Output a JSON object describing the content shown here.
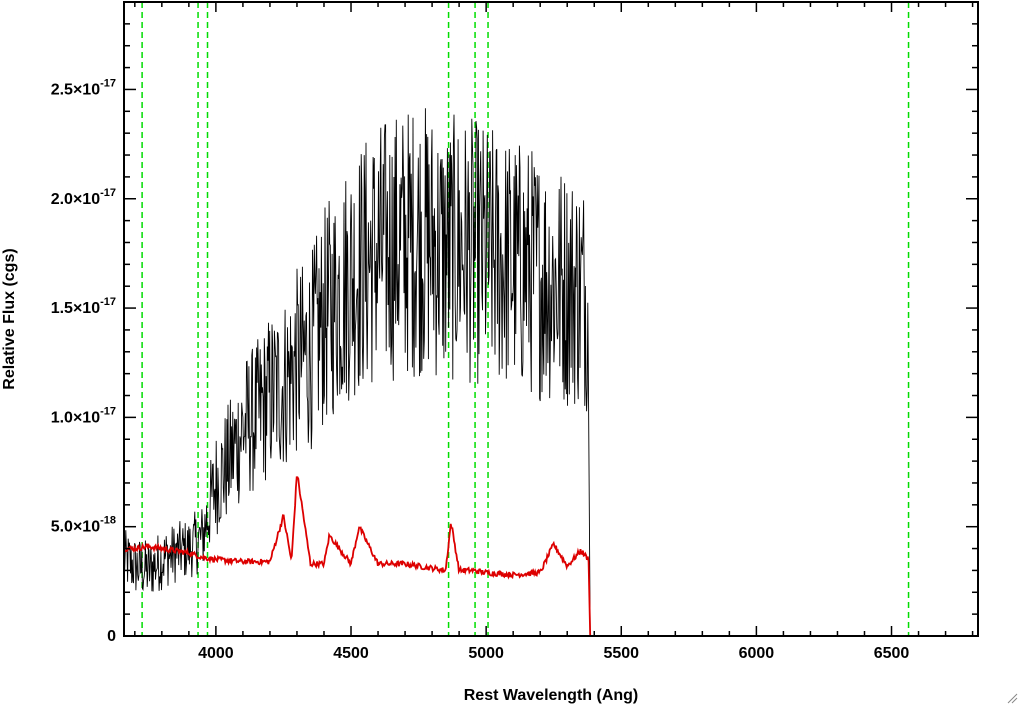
{
  "chart_data": {
    "type": "line",
    "title": "",
    "xlabel": "Rest Wavelength (Ang)",
    "ylabel": "Relative Flux (cgs)",
    "xlim": [
      3660,
      6820
    ],
    "ylim": [
      0,
      2.9e-17
    ],
    "x_ticks": [
      4000,
      4500,
      5000,
      5500,
      6000,
      6500
    ],
    "x_tick_labels": [
      "4000",
      "4500",
      "5000",
      "5500",
      "6000",
      "6500"
    ],
    "y_ticks": [
      0,
      5e-18,
      1e-17,
      1.5e-17,
      2e-17,
      2.5e-17
    ],
    "y_tick_labels": [
      {
        "mantissa": "0",
        "exponent": ""
      },
      {
        "mantissa": "5.0×10",
        "exponent": "-18"
      },
      {
        "mantissa": "1.0×10",
        "exponent": "-17"
      },
      {
        "mantissa": "1.5×10",
        "exponent": "-17"
      },
      {
        "mantissa": "2.0×10",
        "exponent": "-17"
      },
      {
        "mantissa": "2.5×10",
        "exponent": "-17"
      }
    ],
    "grid": false,
    "reference_lines_x": [
      3727,
      3934,
      3969,
      4861,
      4959,
      5007,
      6563
    ],
    "series": [
      {
        "color": "#000000",
        "x": [
          3660,
          3700,
          3750,
          3800,
          3850,
          3900,
          3950,
          4000,
          4050,
          4100,
          4150,
          4200,
          4250,
          4300,
          4350,
          4400,
          4450,
          4500,
          4550,
          4600,
          4650,
          4700,
          4750,
          4800,
          4850,
          4900,
          4950,
          5000,
          5050,
          5100,
          5150,
          5200,
          5250,
          5300,
          5350,
          5380,
          5385,
          6820
        ],
        "y": [
          3.5e-18,
          3.2e-18,
          3e-18,
          3.5e-18,
          3.8e-18,
          4e-18,
          4.5e-18,
          7e-18,
          8e-18,
          9.5e-18,
          1e-17,
          1.1e-17,
          1.15e-17,
          1.25e-17,
          1.3e-17,
          1.45e-17,
          1.55e-17,
          1.65e-17,
          1.7e-17,
          1.75e-17,
          1.78e-17,
          1.8e-17,
          1.82e-17,
          1.8e-17,
          1.75e-17,
          1.78e-17,
          1.76e-17,
          1.74e-17,
          1.72e-17,
          1.7e-17,
          1.68e-17,
          1.65e-17,
          1.62e-17,
          1.6e-17,
          1.58e-17,
          1.55e-17,
          0,
          0
        ],
        "noise": 0.35
      },
      {
        "color": "#dd0000",
        "x": [
          3660,
          3700,
          3750,
          3800,
          3850,
          3900,
          3950,
          4000,
          4100,
          4200,
          4250,
          4280,
          4300,
          4350,
          4400,
          4420,
          4500,
          4530,
          4600,
          4700,
          4800,
          4850,
          4870,
          4900,
          4950,
          5000,
          5100,
          5200,
          5250,
          5300,
          5350,
          5380,
          5385,
          6820
        ],
        "y": [
          4e-18,
          4e-18,
          4.1e-18,
          4e-18,
          3.9e-18,
          3.8e-18,
          3.6e-18,
          3.5e-18,
          3.4e-18,
          3.4e-18,
          5.5e-18,
          3.4e-18,
          7.5e-18,
          3.3e-18,
          3.3e-18,
          4.6e-18,
          3.3e-18,
          5e-18,
          3.3e-18,
          3.3e-18,
          3.1e-18,
          3e-18,
          5.2e-18,
          3e-18,
          3e-18,
          2.9e-18,
          2.8e-18,
          2.9e-18,
          4.2e-18,
          3.2e-18,
          3.9e-18,
          3.5e-18,
          0,
          0
        ]
      }
    ]
  }
}
